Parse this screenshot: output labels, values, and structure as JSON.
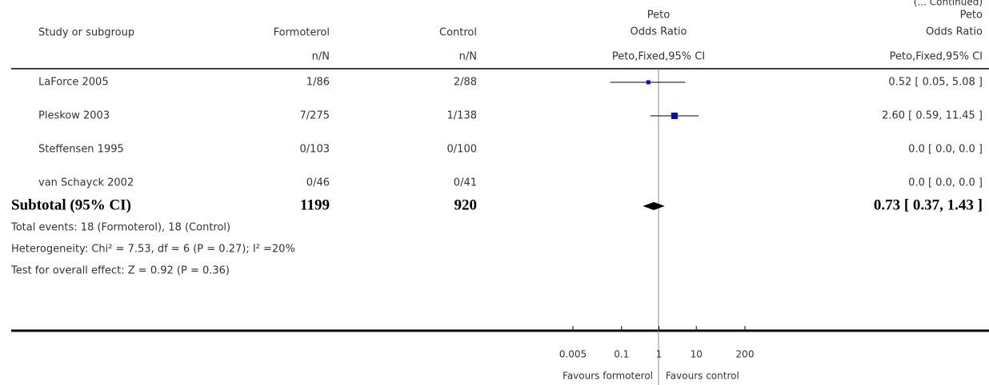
{
  "continued": "(... Continued)",
  "chart_data": {
    "type": "forest",
    "headers": {
      "study": "Study or subgroup",
      "treatment": "Formoterol",
      "control": "Control",
      "plot": [
        "Peto",
        "Odds Ratio"
      ],
      "ratio": [
        "Peto",
        "Odds Ratio"
      ],
      "treatment_sub": "n/N",
      "control_sub": "n/N",
      "plot_sub": "Peto,Fixed,95% CI",
      "ratio_sub": "Peto,Fixed,95% CI"
    },
    "categories": [
      "LaForce 2005",
      "Pleskow 2003",
      "Steffensen 1995",
      "van Schayck 2002"
    ],
    "treatment": [
      "1/86",
      "7/275",
      "0/103",
      "0/46"
    ],
    "control": [
      "2/88",
      "1/138",
      "0/100",
      "0/41"
    ],
    "values": [
      0.52,
      2.6,
      null,
      null
    ],
    "ci_low": [
      0.05,
      0.59,
      null,
      null
    ],
    "ci_high": [
      5.08,
      11.45,
      null,
      null
    ],
    "value_labels": [
      "0.52 [ 0.05, 5.08 ]",
      "2.60 [ 0.59, 11.45 ]",
      "0.0 [ 0.0, 0.0 ]",
      "0.0 [ 0.0, 0.0 ]"
    ],
    "color": "#0000cc",
    "subtotal": {
      "name": "Subtotal (95% CI)",
      "treatment": 1199,
      "control": 920,
      "estimate": 0.73,
      "ci_low": 0.37,
      "ci_high": 1.43,
      "label": "0.73 [ 0.37, 1.43 ]"
    },
    "notes": [
      "Total events: 18 (Formoterol), 18 (Control)",
      "Heterogeneity: Chi² = 7.53, df = 6 (P = 0.27); I² =20%",
      "Test for overall effect: Z = 0.92 (P = 0.36)"
    ],
    "log_scale": true,
    "xlim": [
      0.005,
      200
    ],
    "xticks": [
      0.005,
      0.1,
      1,
      10,
      200
    ],
    "xlabel_left": "Favours formoterol",
    "xlabel_right": "Favours control"
  }
}
